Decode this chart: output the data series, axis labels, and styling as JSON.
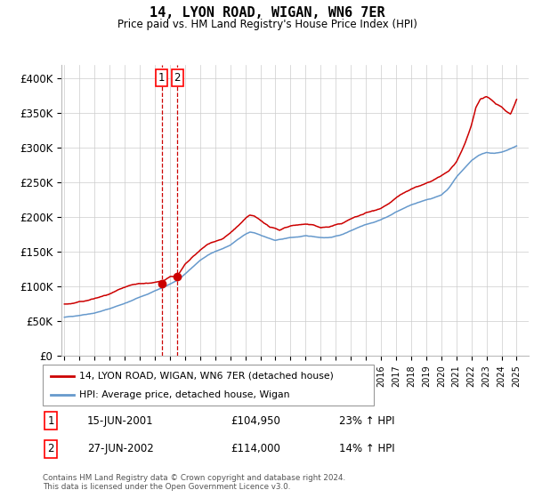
{
  "title": "14, LYON ROAD, WIGAN, WN6 7ER",
  "subtitle": "Price paid vs. HM Land Registry's House Price Index (HPI)",
  "legend_line1": "14, LYON ROAD, WIGAN, WN6 7ER (detached house)",
  "legend_line2": "HPI: Average price, detached house, Wigan",
  "footer1": "Contains HM Land Registry data © Crown copyright and database right 2024.",
  "footer2": "This data is licensed under the Open Government Licence v3.0.",
  "sale1_label": "1",
  "sale1_date": "15-JUN-2001",
  "sale1_price": "£104,950",
  "sale1_hpi": "23% ↑ HPI",
  "sale2_label": "2",
  "sale2_date": "27-JUN-2002",
  "sale2_price": "£114,000",
  "sale2_hpi": "14% ↑ HPI",
  "sale1_x": 2001.46,
  "sale1_y": 104950,
  "sale2_x": 2002.49,
  "sale2_y": 114000,
  "red_color": "#cc0000",
  "blue_color": "#6699cc",
  "dashed_color": "#cc0000",
  "ylim_min": 0,
  "ylim_max": 420000,
  "xlim_min": 1994.8,
  "xlim_max": 2025.8,
  "background_color": "#ffffff",
  "grid_color": "#cccccc",
  "yticks": [
    0,
    50000,
    100000,
    150000,
    200000,
    250000,
    300000,
    350000,
    400000
  ]
}
